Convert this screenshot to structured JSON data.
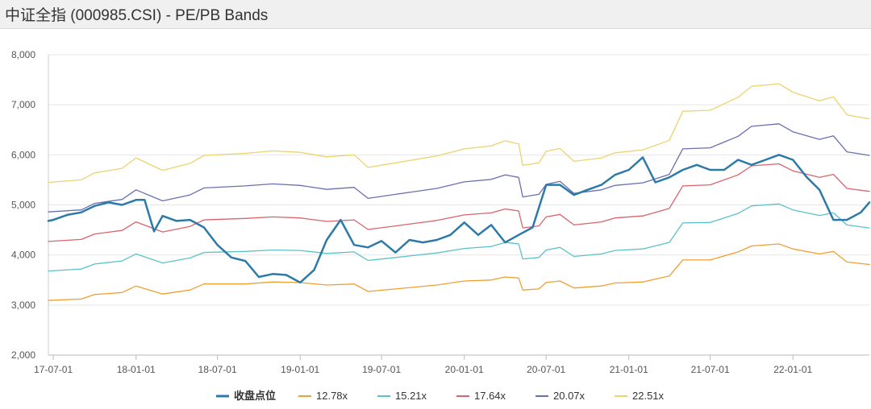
{
  "window": {
    "title": "中证全指 (000985.CSI) - PE/PB Bands"
  },
  "chart_data": {
    "type": "line",
    "title": "中证全指 (000985.CSI) - PE/PB Bands",
    "xlabel": "",
    "ylabel": "",
    "x_range": [
      "2017-06-20",
      "2022-06-20"
    ],
    "ylim": [
      2000,
      8000
    ],
    "y_ticks": [
      2000,
      3000,
      4000,
      5000,
      6000,
      7000,
      8000
    ],
    "y_tick_labels": [
      "2,000",
      "3,000",
      "4,000",
      "5,000",
      "6,000",
      "7,000",
      "8,000"
    ],
    "x_ticks": [
      "2017-07-01",
      "2018-01-01",
      "2018-07-01",
      "2019-01-01",
      "2019-07-01",
      "2020-01-01",
      "2020-07-01",
      "2021-01-01",
      "2021-07-01",
      "2022-01-01"
    ],
    "x_tick_labels": [
      "17-07-01",
      "18-01-01",
      "18-07-01",
      "19-01-01",
      "19-07-01",
      "20-01-01",
      "20-07-01",
      "21-01-01",
      "21-07-01",
      "22-01-01"
    ],
    "grid": "horizontal",
    "legend_position": "bottom-center",
    "series": [
      {
        "name": "收盘点位",
        "color": "#2b7aa8",
        "width": 2.5,
        "points": [
          [
            "2017-06-20",
            4680
          ],
          [
            "2017-07-01",
            4700
          ],
          [
            "2017-08-01",
            4800
          ],
          [
            "2017-09-01",
            4850
          ],
          [
            "2017-10-01",
            4980
          ],
          [
            "2017-11-01",
            5050
          ],
          [
            "2017-12-01",
            5000
          ],
          [
            "2018-01-01",
            5100
          ],
          [
            "2018-01-20",
            5100
          ],
          [
            "2018-02-10",
            4470
          ],
          [
            "2018-03-01",
            4780
          ],
          [
            "2018-04-01",
            4680
          ],
          [
            "2018-05-01",
            4700
          ],
          [
            "2018-06-01",
            4550
          ],
          [
            "2018-07-01",
            4200
          ],
          [
            "2018-08-01",
            3950
          ],
          [
            "2018-09-01",
            3880
          ],
          [
            "2018-10-01",
            3560
          ],
          [
            "2018-11-01",
            3620
          ],
          [
            "2018-12-01",
            3600
          ],
          [
            "2019-01-01",
            3450
          ],
          [
            "2019-02-01",
            3700
          ],
          [
            "2019-03-01",
            4300
          ],
          [
            "2019-04-01",
            4700
          ],
          [
            "2019-05-01",
            4200
          ],
          [
            "2019-06-01",
            4150
          ],
          [
            "2019-07-01",
            4280
          ],
          [
            "2019-08-01",
            4050
          ],
          [
            "2019-09-01",
            4300
          ],
          [
            "2019-10-01",
            4250
          ],
          [
            "2019-11-01",
            4300
          ],
          [
            "2019-12-01",
            4400
          ],
          [
            "2020-01-01",
            4650
          ],
          [
            "2020-02-01",
            4400
          ],
          [
            "2020-03-01",
            4600
          ],
          [
            "2020-04-01",
            4250
          ],
          [
            "2020-05-01",
            4400
          ],
          [
            "2020-06-01",
            4550
          ],
          [
            "2020-07-01",
            5400
          ],
          [
            "2020-08-01",
            5400
          ],
          [
            "2020-09-01",
            5200
          ],
          [
            "2020-10-01",
            5300
          ],
          [
            "2020-11-01",
            5400
          ],
          [
            "2020-12-01",
            5600
          ],
          [
            "2021-01-01",
            5700
          ],
          [
            "2021-02-01",
            5950
          ],
          [
            "2021-03-01",
            5450
          ],
          [
            "2021-04-01",
            5550
          ],
          [
            "2021-05-01",
            5700
          ],
          [
            "2021-06-01",
            5800
          ],
          [
            "2021-07-01",
            5700
          ],
          [
            "2021-08-01",
            5700
          ],
          [
            "2021-09-01",
            5900
          ],
          [
            "2021-10-01",
            5800
          ],
          [
            "2021-11-01",
            5900
          ],
          [
            "2021-12-01",
            6000
          ],
          [
            "2022-01-01",
            5900
          ],
          [
            "2022-02-01",
            5550
          ],
          [
            "2022-03-01",
            5300
          ],
          [
            "2022-04-01",
            4700
          ],
          [
            "2022-05-01",
            4700
          ],
          [
            "2022-06-01",
            4850
          ],
          [
            "2022-06-20",
            5050
          ]
        ]
      },
      {
        "name": "12.78x",
        "color": "#f0a030",
        "width": 1.3,
        "points": [
          [
            "2017-06-20",
            3090
          ],
          [
            "2017-09-01",
            3120
          ],
          [
            "2017-10-01",
            3210
          ],
          [
            "2017-12-01",
            3250
          ],
          [
            "2018-01-01",
            3380
          ],
          [
            "2018-03-01",
            3220
          ],
          [
            "2018-05-01",
            3300
          ],
          [
            "2018-06-01",
            3420
          ],
          [
            "2018-09-01",
            3420
          ],
          [
            "2018-11-01",
            3460
          ],
          [
            "2019-01-01",
            3450
          ],
          [
            "2019-03-01",
            3400
          ],
          [
            "2019-05-01",
            3420
          ],
          [
            "2019-06-01",
            3270
          ],
          [
            "2019-08-01",
            3320
          ],
          [
            "2019-11-01",
            3400
          ],
          [
            "2020-01-01",
            3480
          ],
          [
            "2020-03-01",
            3500
          ],
          [
            "2020-04-01",
            3560
          ],
          [
            "2020-05-01",
            3540
          ],
          [
            "2020-05-10",
            3300
          ],
          [
            "2020-06-15",
            3320
          ],
          [
            "2020-07-01",
            3450
          ],
          [
            "2020-08-01",
            3480
          ],
          [
            "2020-09-01",
            3340
          ],
          [
            "2020-11-01",
            3380
          ],
          [
            "2020-12-01",
            3440
          ],
          [
            "2021-02-01",
            3460
          ],
          [
            "2021-04-01",
            3580
          ],
          [
            "2021-05-01",
            3900
          ],
          [
            "2021-07-01",
            3900
          ],
          [
            "2021-09-01",
            4060
          ],
          [
            "2021-10-01",
            4180
          ],
          [
            "2021-12-01",
            4220
          ],
          [
            "2022-01-01",
            4120
          ],
          [
            "2022-03-01",
            4020
          ],
          [
            "2022-04-01",
            4070
          ],
          [
            "2022-05-01",
            3860
          ],
          [
            "2022-06-20",
            3810
          ]
        ]
      },
      {
        "name": "15.21x",
        "color": "#5bc2c7",
        "width": 1.3,
        "points": [
          [
            "2017-06-20",
            3680
          ],
          [
            "2017-09-01",
            3720
          ],
          [
            "2017-10-01",
            3820
          ],
          [
            "2017-12-01",
            3880
          ],
          [
            "2018-01-01",
            4020
          ],
          [
            "2018-03-01",
            3840
          ],
          [
            "2018-05-01",
            3940
          ],
          [
            "2018-06-01",
            4050
          ],
          [
            "2018-09-01",
            4070
          ],
          [
            "2018-11-01",
            4100
          ],
          [
            "2019-01-01",
            4090
          ],
          [
            "2019-03-01",
            4030
          ],
          [
            "2019-05-01",
            4060
          ],
          [
            "2019-06-01",
            3890
          ],
          [
            "2019-08-01",
            3950
          ],
          [
            "2019-11-01",
            4040
          ],
          [
            "2020-01-01",
            4130
          ],
          [
            "2020-03-01",
            4170
          ],
          [
            "2020-04-01",
            4250
          ],
          [
            "2020-05-01",
            4220
          ],
          [
            "2020-05-10",
            3920
          ],
          [
            "2020-06-15",
            3950
          ],
          [
            "2020-07-01",
            4100
          ],
          [
            "2020-08-01",
            4150
          ],
          [
            "2020-09-01",
            3970
          ],
          [
            "2020-11-01",
            4020
          ],
          [
            "2020-12-01",
            4090
          ],
          [
            "2021-02-01",
            4120
          ],
          [
            "2021-04-01",
            4250
          ],
          [
            "2021-05-01",
            4640
          ],
          [
            "2021-07-01",
            4650
          ],
          [
            "2021-09-01",
            4830
          ],
          [
            "2021-10-01",
            4980
          ],
          [
            "2021-12-01",
            5020
          ],
          [
            "2022-01-01",
            4900
          ],
          [
            "2022-03-01",
            4790
          ],
          [
            "2022-04-01",
            4840
          ],
          [
            "2022-05-01",
            4600
          ],
          [
            "2022-06-20",
            4540
          ]
        ]
      },
      {
        "name": "17.64x",
        "color": "#d9646c",
        "width": 1.3,
        "points": [
          [
            "2017-06-20",
            4270
          ],
          [
            "2017-09-01",
            4310
          ],
          [
            "2017-10-01",
            4420
          ],
          [
            "2017-12-01",
            4490
          ],
          [
            "2018-01-01",
            4660
          ],
          [
            "2018-03-01",
            4460
          ],
          [
            "2018-05-01",
            4570
          ],
          [
            "2018-06-01",
            4700
          ],
          [
            "2018-09-01",
            4730
          ],
          [
            "2018-11-01",
            4760
          ],
          [
            "2019-01-01",
            4740
          ],
          [
            "2019-03-01",
            4670
          ],
          [
            "2019-05-01",
            4700
          ],
          [
            "2019-06-01",
            4510
          ],
          [
            "2019-08-01",
            4580
          ],
          [
            "2019-11-01",
            4690
          ],
          [
            "2020-01-01",
            4800
          ],
          [
            "2020-03-01",
            4840
          ],
          [
            "2020-04-01",
            4920
          ],
          [
            "2020-05-01",
            4880
          ],
          [
            "2020-05-10",
            4540
          ],
          [
            "2020-06-15",
            4580
          ],
          [
            "2020-07-01",
            4760
          ],
          [
            "2020-08-01",
            4810
          ],
          [
            "2020-09-01",
            4600
          ],
          [
            "2020-11-01",
            4660
          ],
          [
            "2020-12-01",
            4740
          ],
          [
            "2021-02-01",
            4780
          ],
          [
            "2021-04-01",
            4930
          ],
          [
            "2021-05-01",
            5380
          ],
          [
            "2021-07-01",
            5400
          ],
          [
            "2021-09-01",
            5600
          ],
          [
            "2021-10-01",
            5780
          ],
          [
            "2021-12-01",
            5820
          ],
          [
            "2022-01-01",
            5680
          ],
          [
            "2022-03-01",
            5550
          ],
          [
            "2022-04-01",
            5610
          ],
          [
            "2022-05-01",
            5330
          ],
          [
            "2022-06-20",
            5270
          ]
        ]
      },
      {
        "name": "20.07x",
        "color": "#6a6fb0",
        "width": 1.3,
        "points": [
          [
            "2017-06-20",
            4860
          ],
          [
            "2017-09-01",
            4900
          ],
          [
            "2017-10-01",
            5030
          ],
          [
            "2017-12-01",
            5110
          ],
          [
            "2018-01-01",
            5300
          ],
          [
            "2018-03-01",
            5080
          ],
          [
            "2018-05-01",
            5200
          ],
          [
            "2018-06-01",
            5340
          ],
          [
            "2018-09-01",
            5380
          ],
          [
            "2018-11-01",
            5420
          ],
          [
            "2019-01-01",
            5390
          ],
          [
            "2019-03-01",
            5310
          ],
          [
            "2019-05-01",
            5350
          ],
          [
            "2019-06-01",
            5130
          ],
          [
            "2019-08-01",
            5210
          ],
          [
            "2019-11-01",
            5330
          ],
          [
            "2020-01-01",
            5460
          ],
          [
            "2020-03-01",
            5510
          ],
          [
            "2020-04-01",
            5600
          ],
          [
            "2020-05-01",
            5550
          ],
          [
            "2020-05-10",
            5160
          ],
          [
            "2020-06-15",
            5210
          ],
          [
            "2020-07-01",
            5410
          ],
          [
            "2020-08-01",
            5470
          ],
          [
            "2020-09-01",
            5230
          ],
          [
            "2020-11-01",
            5300
          ],
          [
            "2020-12-01",
            5390
          ],
          [
            "2021-02-01",
            5440
          ],
          [
            "2021-04-01",
            5610
          ],
          [
            "2021-05-01",
            6120
          ],
          [
            "2021-07-01",
            6140
          ],
          [
            "2021-09-01",
            6370
          ],
          [
            "2021-10-01",
            6570
          ],
          [
            "2021-12-01",
            6620
          ],
          [
            "2022-01-01",
            6460
          ],
          [
            "2022-03-01",
            6310
          ],
          [
            "2022-04-01",
            6380
          ],
          [
            "2022-05-01",
            6060
          ],
          [
            "2022-06-20",
            5990
          ]
        ]
      },
      {
        "name": "22.51x",
        "color": "#ecd36e",
        "width": 1.3,
        "points": [
          [
            "2017-06-20",
            5450
          ],
          [
            "2017-09-01",
            5500
          ],
          [
            "2017-10-01",
            5640
          ],
          [
            "2017-12-01",
            5730
          ],
          [
            "2018-01-01",
            5940
          ],
          [
            "2018-03-01",
            5690
          ],
          [
            "2018-05-01",
            5830
          ],
          [
            "2018-06-01",
            5990
          ],
          [
            "2018-09-01",
            6030
          ],
          [
            "2018-11-01",
            6080
          ],
          [
            "2019-01-01",
            6050
          ],
          [
            "2019-03-01",
            5960
          ],
          [
            "2019-05-01",
            6000
          ],
          [
            "2019-06-01",
            5750
          ],
          [
            "2019-08-01",
            5840
          ],
          [
            "2019-11-01",
            5980
          ],
          [
            "2020-01-01",
            6120
          ],
          [
            "2020-03-01",
            6180
          ],
          [
            "2020-04-01",
            6280
          ],
          [
            "2020-05-01",
            6220
          ],
          [
            "2020-05-10",
            5790
          ],
          [
            "2020-06-15",
            5840
          ],
          [
            "2020-07-01",
            6070
          ],
          [
            "2020-08-01",
            6130
          ],
          [
            "2020-09-01",
            5870
          ],
          [
            "2020-11-01",
            5940
          ],
          [
            "2020-12-01",
            6040
          ],
          [
            "2021-02-01",
            6100
          ],
          [
            "2021-04-01",
            6290
          ],
          [
            "2021-05-01",
            6870
          ],
          [
            "2021-07-01",
            6890
          ],
          [
            "2021-09-01",
            7150
          ],
          [
            "2021-10-01",
            7370
          ],
          [
            "2021-12-01",
            7420
          ],
          [
            "2022-01-01",
            7250
          ],
          [
            "2022-03-01",
            7080
          ],
          [
            "2022-04-01",
            7160
          ],
          [
            "2022-05-01",
            6800
          ],
          [
            "2022-06-20",
            6720
          ]
        ]
      }
    ]
  }
}
